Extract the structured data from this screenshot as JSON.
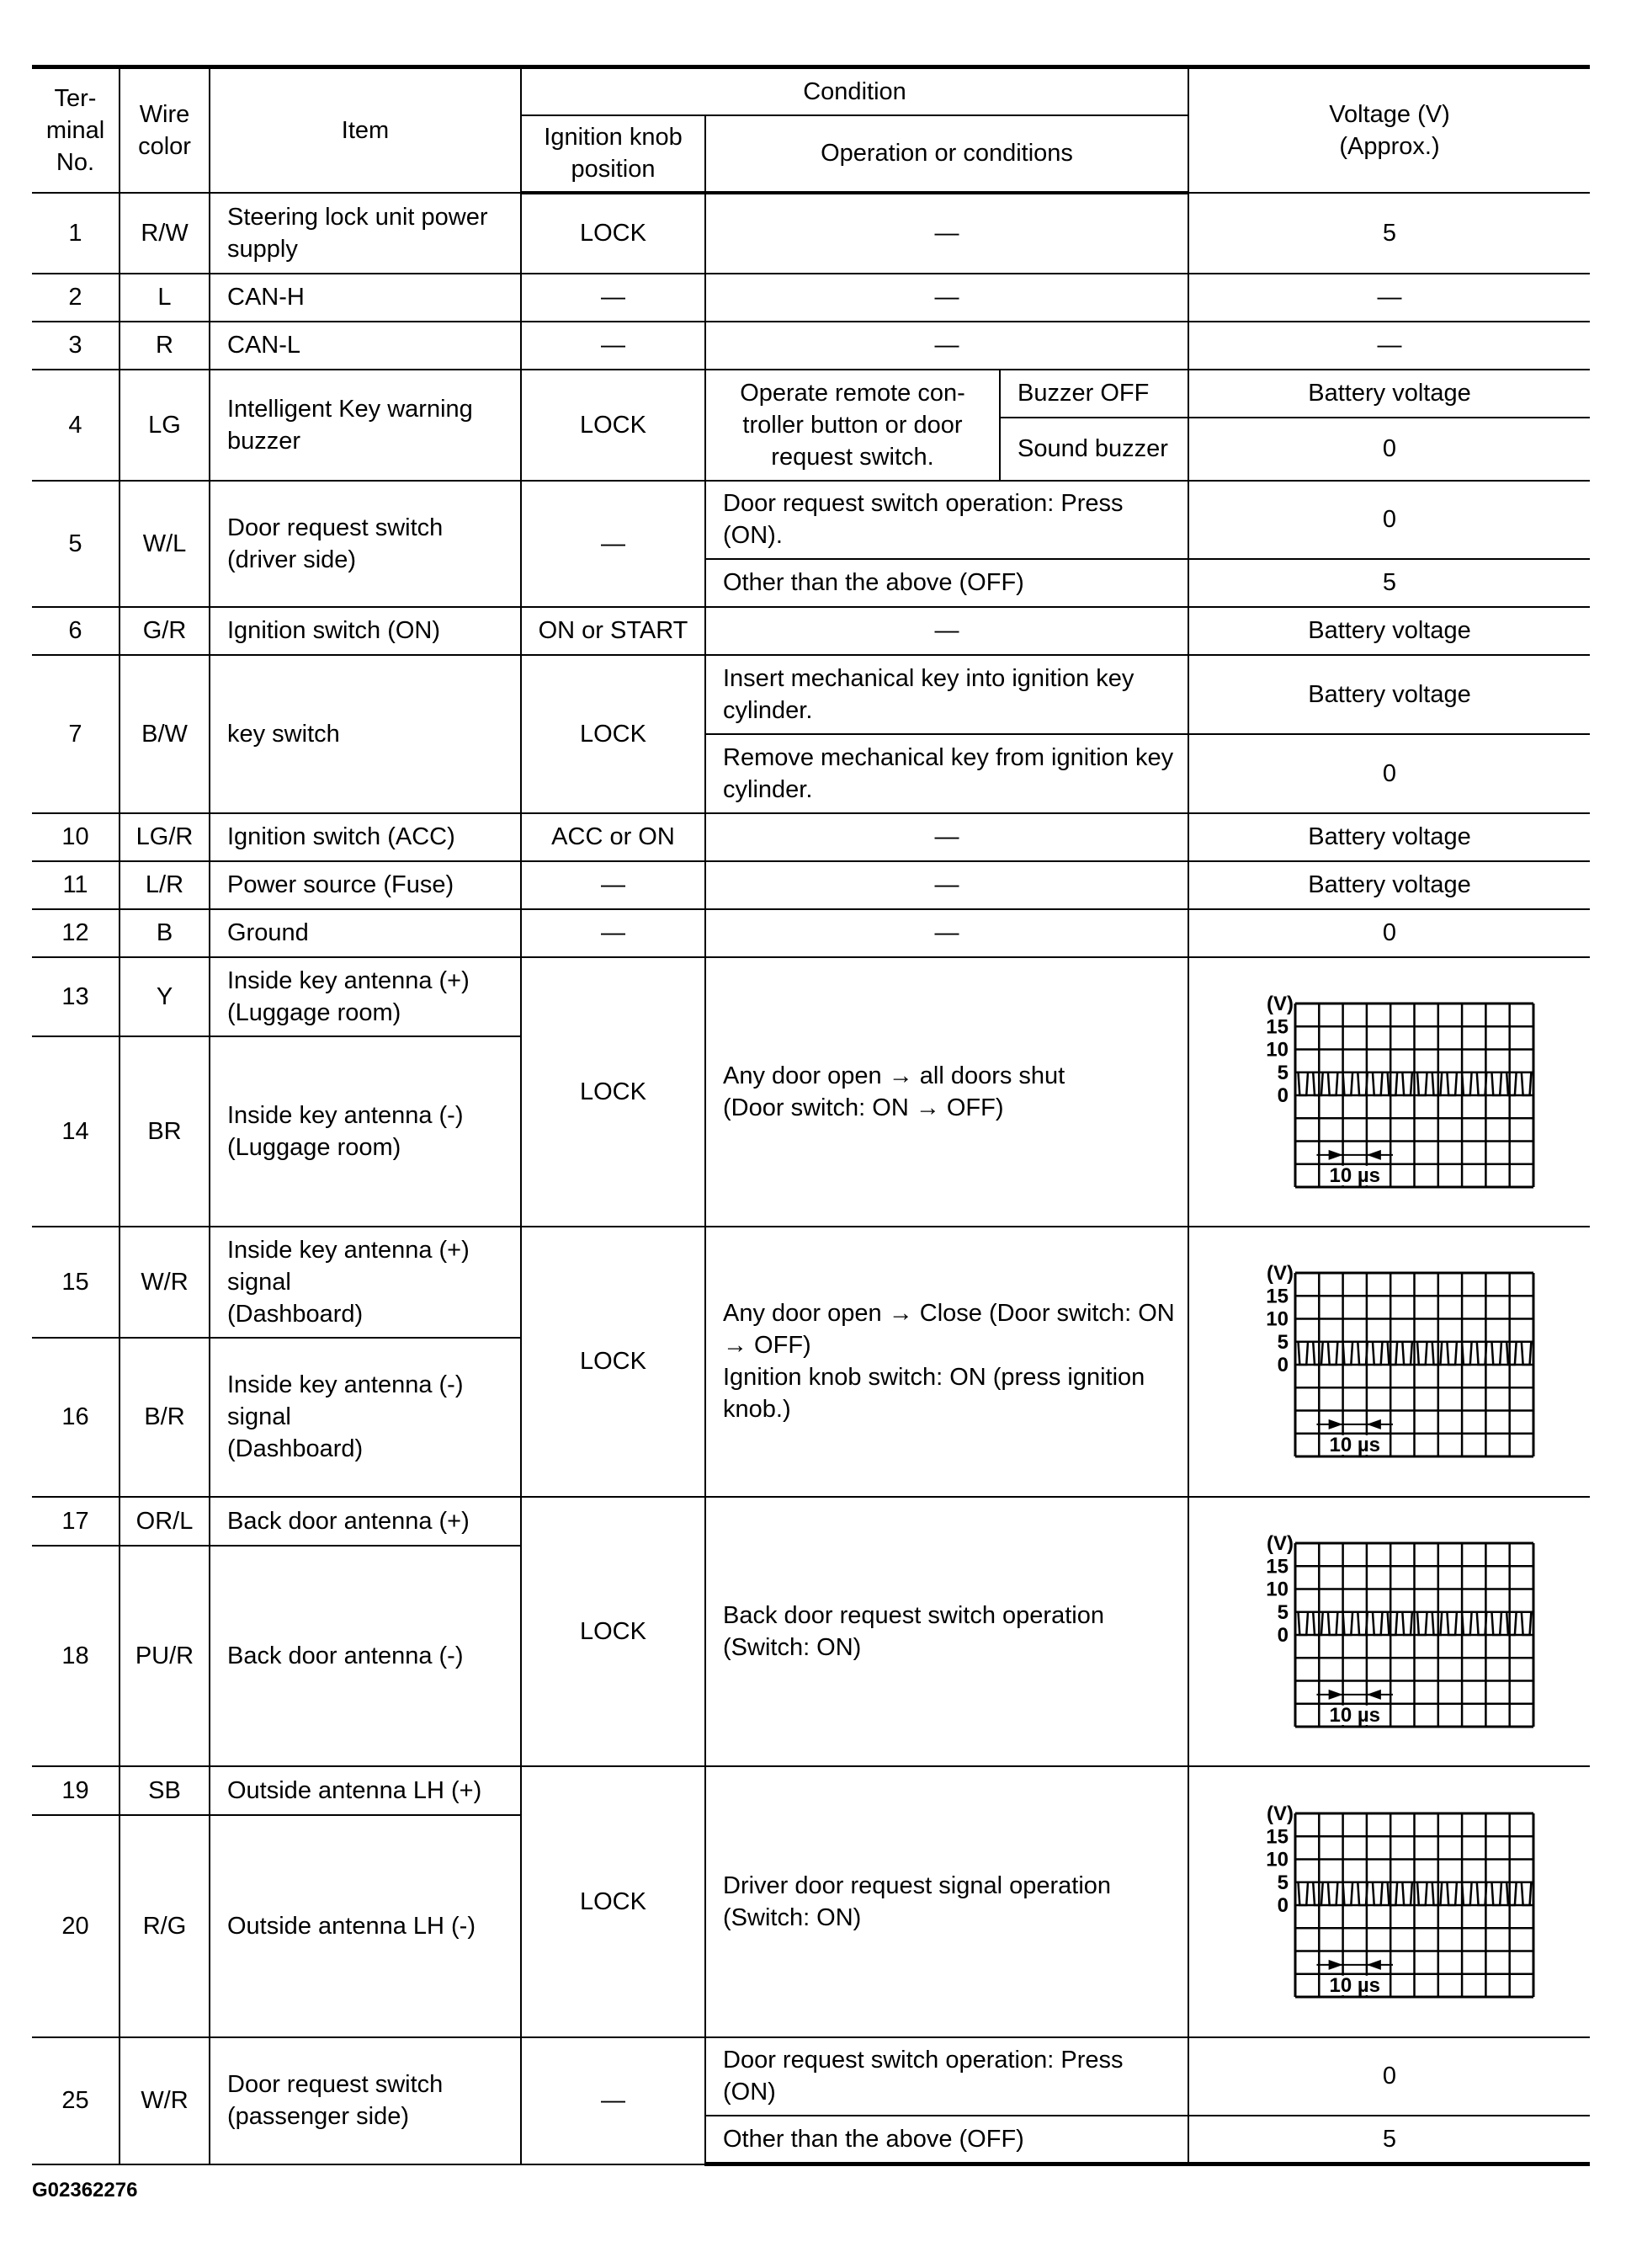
{
  "header": {
    "terminal": "Ter-\nminal\nNo.",
    "wire": "Wire\ncolor",
    "item": "Item",
    "condition": "Condition",
    "ignition": "Ignition knob\nposition",
    "operation": "Operation or conditions",
    "voltage": "Voltage (V)\n(Approx.)"
  },
  "rows": [
    {
      "terminal": "1",
      "wire": "R/W",
      "item": "Steering lock unit power supply",
      "ignition": "LOCK",
      "conditions": [
        {
          "operation": "—",
          "voltage": "5"
        }
      ]
    },
    {
      "terminal": "2",
      "wire": "L",
      "item": "CAN-H",
      "ignition": "—",
      "conditions": [
        {
          "operation": "—",
          "voltage": "—"
        }
      ]
    },
    {
      "terminal": "3",
      "wire": "R",
      "item": "CAN-L",
      "ignition": "—",
      "conditions": [
        {
          "operation": "—",
          "voltage": "—"
        }
      ]
    },
    {
      "terminal": "4",
      "wire": "LG",
      "item": "Intelligent Key warning buzzer",
      "ignition": "LOCK",
      "operation": "Operate remote con-\ntroller button or door\nrequest switch.",
      "conditions": [
        {
          "sub": "Buzzer OFF",
          "voltage": "Battery voltage"
        },
        {
          "sub": "Sound buzzer",
          "voltage": "0"
        }
      ]
    },
    {
      "terminal": "5",
      "wire": "W/L",
      "item": "Door request switch (driver side)",
      "ignition": "—",
      "conditions": [
        {
          "operation": "Door request switch operation: Press (ON).",
          "voltage": "0"
        },
        {
          "operation": "Other than the above (OFF)",
          "voltage": "5"
        }
      ]
    },
    {
      "terminal": "6",
      "wire": "G/R",
      "item": "Ignition switch (ON)",
      "ignition": "ON or START",
      "conditions": [
        {
          "operation": "—",
          "voltage": "Battery voltage"
        }
      ]
    },
    {
      "terminal": "7",
      "wire": "B/W",
      "item": "key switch",
      "ignition": "LOCK",
      "conditions": [
        {
          "operation": "Insert mechanical key into ignition key cylinder.",
          "voltage": "Battery voltage"
        },
        {
          "operation": "Remove mechanical key from ignition key cylinder.",
          "voltage": "0"
        }
      ]
    },
    {
      "terminal": "10",
      "wire": "LG/R",
      "item": "Ignition switch (ACC)",
      "ignition": "ACC or ON",
      "conditions": [
        {
          "operation": "—",
          "voltage": "Battery voltage"
        }
      ]
    },
    {
      "terminal": "11",
      "wire": "L/R",
      "item": "Power source (Fuse)",
      "ignition": "—",
      "conditions": [
        {
          "operation": "—",
          "voltage": "Battery voltage"
        }
      ]
    },
    {
      "terminal": "12",
      "wire": "B",
      "item": "Ground",
      "ignition": "—",
      "conditions": [
        {
          "operation": "—",
          "voltage": "0"
        }
      ]
    },
    {
      "pair": [
        {
          "terminal": "13",
          "wire": "Y",
          "item": "Inside key antenna (+)\n(Luggage room)"
        },
        {
          "terminal": "14",
          "wire": "BR",
          "item": "Inside key antenna (-)\n(Luggage room)"
        }
      ],
      "ignition": "LOCK",
      "operation": "Any door open → all doors shut\n(Door switch: ON → OFF)",
      "waveform": true
    },
    {
      "pair": [
        {
          "terminal": "15",
          "wire": "W/R",
          "item": "Inside key antenna (+)\nsignal\n(Dashboard)"
        },
        {
          "terminal": "16",
          "wire": "B/R",
          "item": "Inside key antenna (-)\nsignal\n(Dashboard)"
        }
      ],
      "ignition": "LOCK",
      "operation": "Any door open → Close (Door switch: ON → OFF)\nIgnition knob switch: ON (press ignition knob.)",
      "waveform": true
    },
    {
      "pair": [
        {
          "terminal": "17",
          "wire": "OR/L",
          "item": "Back door antenna (+)"
        },
        {
          "terminal": "18",
          "wire": "PU/R",
          "item": "Back door antenna (-)"
        }
      ],
      "ignition": "LOCK",
      "operation": "Back door request switch operation\n(Switch: ON)",
      "waveform": true
    },
    {
      "pair": [
        {
          "terminal": "19",
          "wire": "SB",
          "item": "Outside antenna LH (+)"
        },
        {
          "terminal": "20",
          "wire": "R/G",
          "item": "Outside antenna LH (-)"
        }
      ],
      "ignition": "LOCK",
      "operation": "Driver door request signal operation\n(Switch: ON)",
      "waveform": true
    },
    {
      "terminal": "25",
      "wire": "W/R",
      "item": "Door request switch (passenger side)",
      "ignition": "—",
      "conditions": [
        {
          "operation": "Door request switch operation: Press (ON)",
          "voltage": "0"
        },
        {
          "operation": "Other than the above (OFF)",
          "voltage": "5"
        }
      ]
    }
  ],
  "waveform": {
    "y_unit": "(V)",
    "y_ticks": [
      "15",
      "10",
      "5",
      "0"
    ],
    "time_label": "10 µs",
    "amplitude_v": 5,
    "grid_cols": 10,
    "grid_rows": 8,
    "pulses": 16
  },
  "footer": {
    "code": "G02362276"
  }
}
